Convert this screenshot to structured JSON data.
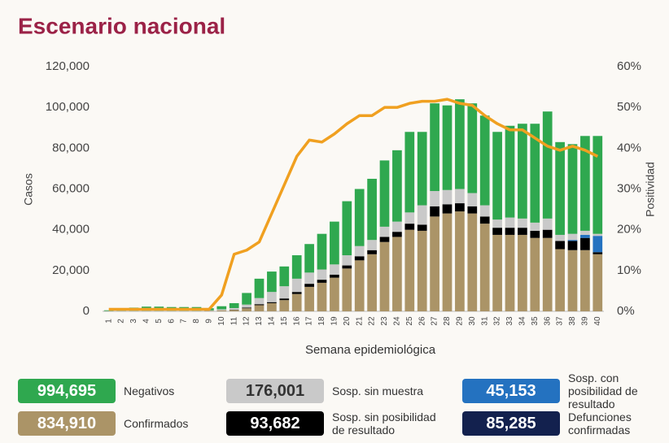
{
  "chart_data": {
    "type": "bar",
    "stacked": true,
    "title": "Escenario nacional",
    "x_label": "Semana epidemiológica",
    "y_label": "Casos",
    "y2_label": "Positividad",
    "categories": [
      "1",
      "2",
      "3",
      "4",
      "5",
      "6",
      "7",
      "8",
      "9",
      "10",
      "11",
      "12",
      "13",
      "14",
      "15",
      "16",
      "17",
      "18",
      "19",
      "20",
      "21",
      "22",
      "23",
      "24",
      "25",
      "26",
      "27",
      "28",
      "29",
      "30",
      "31",
      "32",
      "33",
      "34",
      "35",
      "36",
      "37",
      "38",
      "39",
      "40"
    ],
    "ylim": [
      0,
      120000
    ],
    "yticks": [
      0,
      {
        "value": 20000,
        "label": "20,000"
      },
      {
        "value": 40000,
        "label": "40,000"
      },
      {
        "value": 60000,
        "label": "60,000"
      },
      {
        "value": 80000,
        "label": "80,000"
      },
      {
        "value": 100000,
        "label": "100,000"
      },
      {
        "value": 120000,
        "label": "120,000"
      }
    ],
    "y2lim": [
      0,
      60
    ],
    "y2ticks": [
      {
        "value": 0,
        "label": "0%"
      },
      {
        "value": 10,
        "label": "10%"
      },
      {
        "value": 20,
        "label": "20%"
      },
      {
        "value": 30,
        "label": "30%"
      },
      {
        "value": 40,
        "label": "40%"
      },
      {
        "value": 50,
        "label": "50%"
      },
      {
        "value": 60,
        "label": "60%"
      }
    ],
    "grid": false,
    "series": [
      {
        "name": "Confirmados",
        "color": "#ab9467",
        "total": 834910,
        "total_label": "834,910",
        "values": [
          100,
          100,
          100,
          100,
          100,
          100,
          100,
          100,
          200,
          500,
          700,
          1500,
          3000,
          4000,
          5500,
          8500,
          12000,
          14000,
          16500,
          21000,
          25000,
          28000,
          34000,
          36500,
          40000,
          39500,
          46500,
          48000,
          49000,
          48000,
          43000,
          37500,
          37500,
          37500,
          36000,
          36000,
          30500,
          30000,
          30000,
          28000
        ]
      },
      {
        "name": "Sosp. sin posibilidad de resultado",
        "color": "#000000",
        "total": 93682,
        "total_label": "93,682",
        "values": [
          0,
          0,
          0,
          0,
          0,
          0,
          0,
          0,
          0,
          0,
          100,
          300,
          500,
          500,
          800,
          1000,
          1500,
          1500,
          1500,
          1500,
          2000,
          2000,
          2500,
          2500,
          3000,
          3000,
          5000,
          4500,
          4000,
          3500,
          3500,
          3500,
          3500,
          3500,
          3500,
          4000,
          4000,
          4500,
          6000,
          1000
        ]
      },
      {
        "name": "Sosp. con posibilidad de resultado",
        "color": "#2472c0",
        "total": 45153,
        "total_label": "45,153",
        "values": [
          0,
          0,
          0,
          0,
          0,
          0,
          0,
          0,
          0,
          0,
          0,
          0,
          0,
          0,
          0,
          0,
          0,
          0,
          0,
          0,
          0,
          0,
          0,
          0,
          0,
          0,
          0,
          0,
          0,
          0,
          0,
          0,
          0,
          0,
          0,
          0,
          0,
          500,
          1500,
          8000
        ]
      },
      {
        "name": "Sosp. sin muestra",
        "color": "#c9c9c9",
        "total": 176001,
        "total_label": "176,001",
        "values": [
          100,
          200,
          200,
          200,
          200,
          200,
          200,
          200,
          300,
          500,
          800,
          1500,
          3000,
          5000,
          6000,
          6500,
          5500,
          5000,
          5000,
          5000,
          5000,
          5000,
          5000,
          5000,
          5500,
          9500,
          7500,
          7000,
          7000,
          6500,
          5500,
          4000,
          5000,
          4500,
          4000,
          5500,
          3000,
          3000,
          2000,
          1000
        ]
      },
      {
        "name": "Negativos",
        "color": "#2fa84f",
        "total": 994695,
        "total_label": "994,695",
        "values": [
          300,
          1200,
          1500,
          2000,
          2000,
          1800,
          1800,
          1800,
          1000,
          1500,
          2400,
          5700,
          9500,
          10000,
          9700,
          11500,
          14000,
          17500,
          21000,
          26500,
          28000,
          30000,
          32500,
          35000,
          39500,
          36000,
          43000,
          41500,
          44000,
          44000,
          44000,
          43000,
          45000,
          46500,
          48500,
          52500,
          45500,
          44000,
          46500,
          48000
        ]
      },
      {
        "type": "line",
        "axis": "y2",
        "color": "#f0a020",
        "values": [
          0.5,
          0.5,
          0.5,
          0.5,
          0.5,
          0.5,
          0.5,
          0.5,
          0.5,
          4,
          14,
          15,
          17,
          24,
          31,
          38,
          42,
          41.5,
          43.5,
          46,
          48,
          48,
          50,
          50,
          51,
          51.5,
          51.5,
          52,
          51,
          50.5,
          48,
          46,
          44.5,
          44.5,
          42.5,
          40.5,
          39.5,
          40.5,
          39.5,
          38
        ]
      }
    ],
    "extra_total": {
      "name": "Defunciones confirmadas",
      "color": "#13214e",
      "total": 85285,
      "total_label": "85,285"
    }
  }
}
